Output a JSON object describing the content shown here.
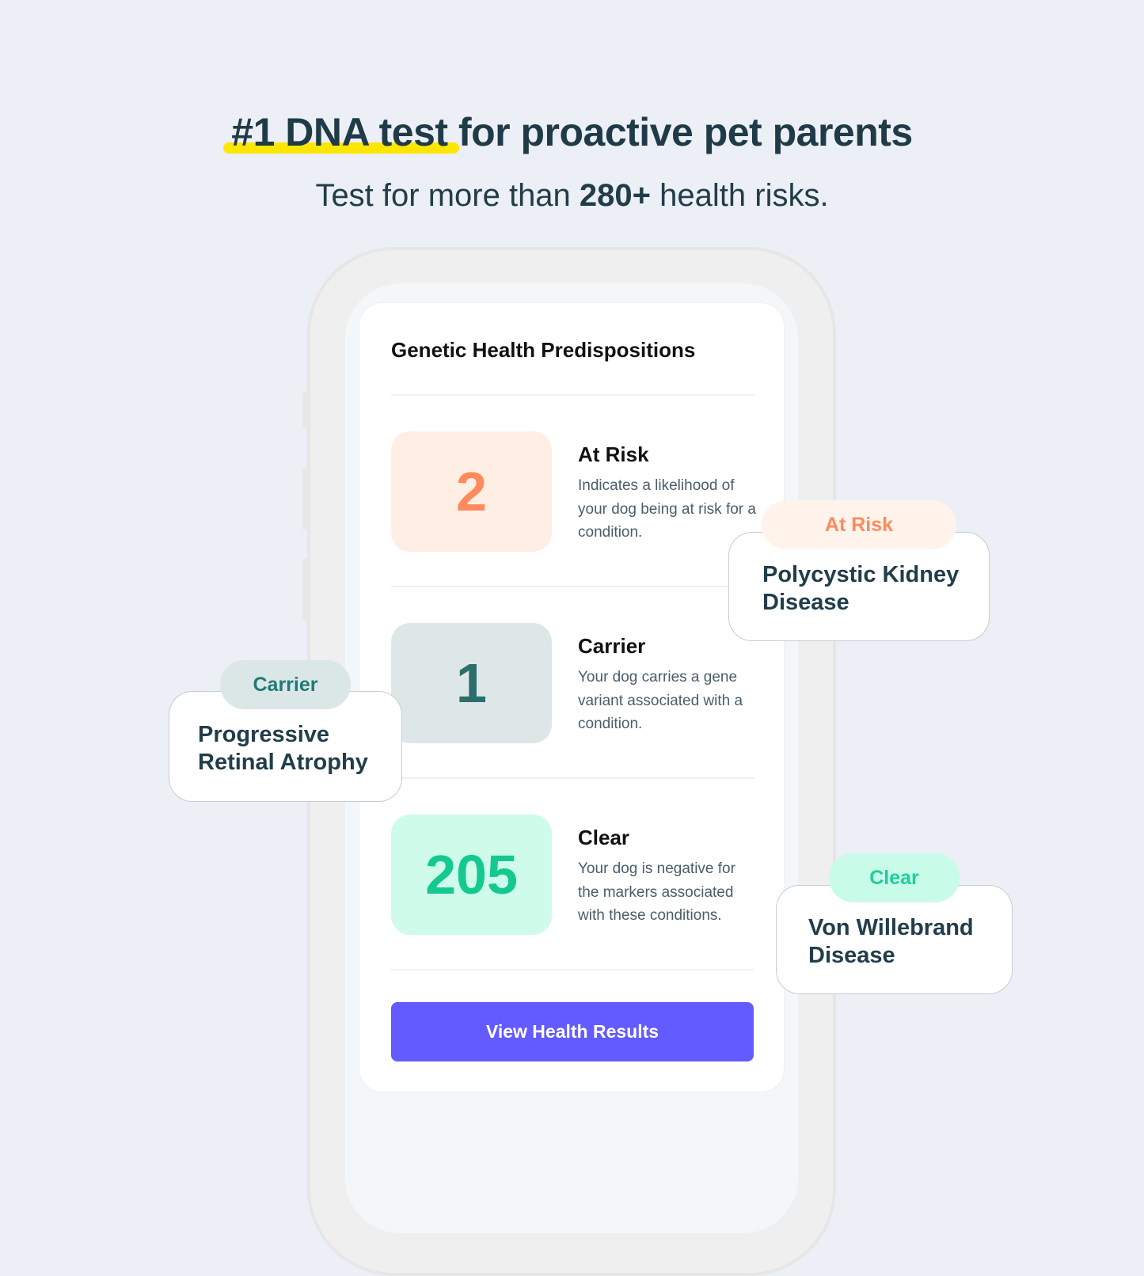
{
  "headline": {
    "highlight": "#1 DNA test",
    "rest": " for proactive pet parents"
  },
  "subheadline": {
    "pre": "Test for more than ",
    "bold": "280+",
    "post": " health risks."
  },
  "card": {
    "title": "Genetic Health Predispositions",
    "rows": [
      {
        "count": "2",
        "label": "At Risk",
        "description": "Indicates a likelihood of your dog being at risk for a condition.",
        "color": "#ff8a5b",
        "bg": "#ffeee4"
      },
      {
        "count": "1",
        "label": "Carrier",
        "description": "Your dog carries a gene variant associated with a condition.",
        "color": "#2c6e6c",
        "bg": "#dde7e7"
      },
      {
        "count": "205",
        "label": "Clear",
        "description": "Your dog is negative for the markers associated with these conditions.",
        "color": "#14c98f",
        "bg": "#cffcea"
      }
    ],
    "button": "View Health Results",
    "accent": "#635bff"
  },
  "floating": [
    {
      "status": "At Risk",
      "condition": "Polycystic Kidney Disease"
    },
    {
      "status": "Carrier",
      "condition": "Progressive Retinal Atrophy"
    },
    {
      "status": "Clear",
      "condition": "Von Willebrand Disease"
    }
  ]
}
